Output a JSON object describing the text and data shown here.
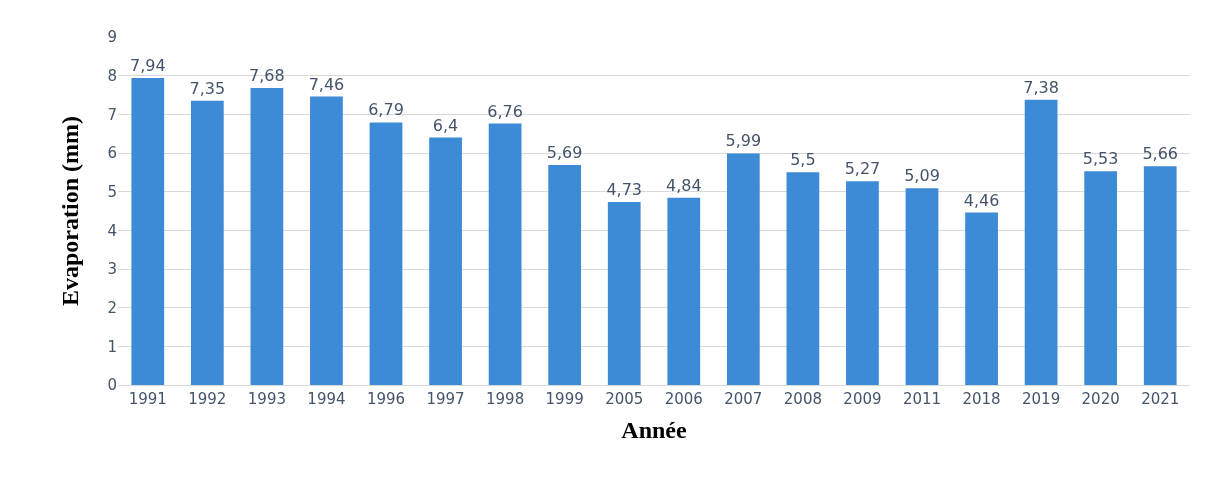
{
  "chart_data": {
    "type": "bar",
    "xlabel": "Année",
    "ylabel": "Evaporation (mm)",
    "categories": [
      "1991",
      "1992",
      "1993",
      "1994",
      "1996",
      "1997",
      "1998",
      "1999",
      "2005",
      "2006",
      "2007",
      "2008",
      "2009",
      "2011",
      "2018",
      "2019",
      "2020",
      "2021"
    ],
    "values": [
      7.94,
      7.35,
      7.68,
      7.46,
      6.79,
      6.4,
      6.76,
      5.69,
      4.73,
      4.84,
      5.99,
      5.5,
      5.27,
      5.09,
      4.46,
      7.38,
      5.53,
      5.66
    ],
    "value_labels": [
      "7,94",
      "7,35",
      "7,68",
      "7,46",
      "6,79",
      "6,4",
      "6,76",
      "5,69",
      "4,73",
      "4,84",
      "5,99",
      "5,5",
      "5,27",
      "5,09",
      "4,46",
      "7,38",
      "5,53",
      "5,66"
    ],
    "color": "#3d8ad6",
    "ylim": [
      0,
      9
    ],
    "yticks": [
      0,
      1,
      2,
      3,
      4,
      5,
      6,
      7,
      8,
      9
    ],
    "grid": "y"
  }
}
